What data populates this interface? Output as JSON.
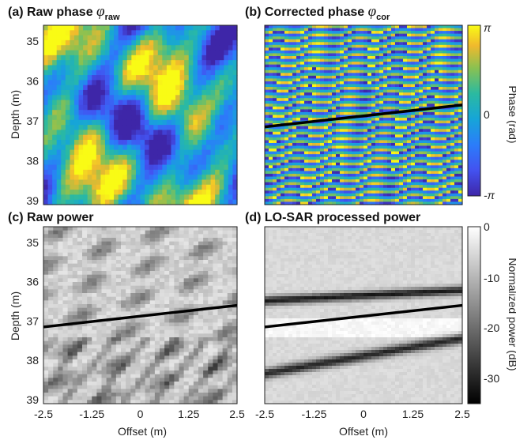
{
  "chart_data": [
    {
      "type": "heatmap",
      "panel": "(a)",
      "title": "(a) Raw phase",
      "title_symbol": "φ",
      "title_subscript": "raw",
      "xlim": [
        -2.5,
        2.5
      ],
      "xticks": [],
      "ylabel": "Depth (m)",
      "ylim": [
        34.6,
        39.1
      ],
      "yticks": [
        "35",
        "36",
        "37",
        "38",
        "39"
      ],
      "colormap": "parula",
      "line": null
    },
    {
      "type": "heatmap",
      "panel": "(b)",
      "title": "(b) Corrected phase",
      "title_symbol": "φ",
      "title_subscript": "cor",
      "xlim": [
        -2.5,
        2.5
      ],
      "xticks": [],
      "ylim": [
        34.6,
        39.1
      ],
      "yticks": [],
      "colormap": "parula",
      "line": {
        "x": [
          -2.5,
          2.5
        ],
        "y": [
          37.15,
          36.6
        ],
        "color": "#000000"
      }
    },
    {
      "type": "heatmap",
      "panel": "(c)",
      "title": "(c) Raw power",
      "xlabel": "Offset (m)",
      "xlim": [
        -2.5,
        2.5
      ],
      "xticks": [
        "-2.5",
        "-1.25",
        "0",
        "1.25",
        "2.5"
      ],
      "ylabel": "Depth (m)",
      "ylim": [
        34.6,
        39.1
      ],
      "yticks": [
        "35",
        "36",
        "37",
        "38",
        "39"
      ],
      "colormap": "gray",
      "line": {
        "x": [
          -2.5,
          2.5
        ],
        "y": [
          37.15,
          36.6
        ],
        "color": "#000000"
      }
    },
    {
      "type": "heatmap",
      "panel": "(d)",
      "title": "(d) LO-SAR processed power",
      "xlabel": "Offset (m)",
      "xlim": [
        -2.5,
        2.5
      ],
      "xticks": [
        "-2.5",
        "-1.25",
        "0",
        "1.25",
        "2.5"
      ],
      "ylim": [
        34.6,
        39.1
      ],
      "yticks": [],
      "colormap": "gray",
      "line": {
        "x": [
          -2.5,
          2.5
        ],
        "y": [
          37.15,
          36.6
        ],
        "color": "#000000"
      }
    }
  ],
  "colorbars": {
    "phase": {
      "label": "Phase (rad)",
      "ticks": [
        "π",
        "0",
        "-π"
      ],
      "range": [
        -3.1416,
        3.1416
      ]
    },
    "power": {
      "label": "Normalized power (dB)",
      "ticks": [
        "0",
        "-10",
        "-20",
        "-30"
      ],
      "range": [
        -35,
        0
      ]
    }
  }
}
